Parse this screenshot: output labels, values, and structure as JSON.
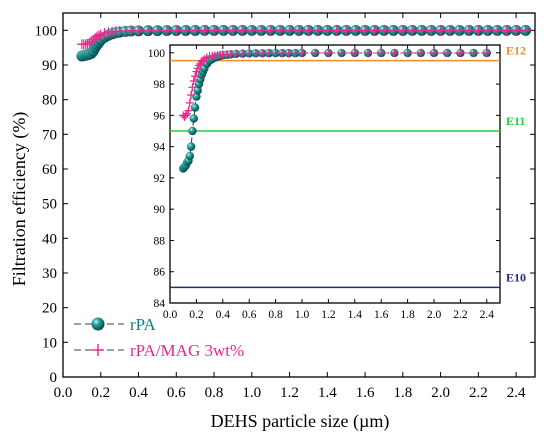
{
  "chart_data": [
    {
      "type": "scatter",
      "title": "",
      "xlabel": "DEHS particle size (µm)",
      "ylabel": "Filtration efficiency (%)",
      "xlim": [
        0.0,
        2.5
      ],
      "ylim": [
        0,
        105
      ],
      "x_ticks": [
        "0.0",
        "0.2",
        "0.4",
        "0.6",
        "0.8",
        "1.0",
        "1.2",
        "1.4",
        "1.6",
        "1.8",
        "2.0",
        "2.2",
        "2.4"
      ],
      "y_ticks": [
        "0",
        "10",
        "20",
        "30",
        "40",
        "50",
        "60",
        "70",
        "80",
        "90",
        "100"
      ],
      "legend_placement": "bottom-left",
      "series": [
        {
          "name": "rPA",
          "marker": "sphere",
          "color": "#0e7f7f",
          "x": [
            0.1,
            0.11,
            0.12,
            0.13,
            0.14,
            0.15,
            0.16,
            0.17,
            0.18,
            0.19,
            0.2,
            0.22,
            0.24,
            0.26,
            0.28,
            0.3,
            0.33,
            0.36,
            0.4,
            0.45,
            0.5,
            0.55,
            0.6,
            0.65,
            0.7,
            0.75,
            0.8,
            0.85,
            0.9,
            0.95,
            1.0,
            1.05,
            1.1,
            1.15,
            1.2,
            1.25,
            1.3,
            1.35,
            1.4,
            1.45,
            1.5,
            1.55,
            1.6,
            1.65,
            1.7,
            1.75,
            1.8,
            1.85,
            1.9,
            1.95,
            2.0,
            2.05,
            2.1,
            2.15,
            2.2,
            2.25,
            2.3,
            2.35,
            2.4,
            2.45
          ],
          "y": [
            92.6,
            92.7,
            92.8,
            93.0,
            93.1,
            93.4,
            94.0,
            95.0,
            95.8,
            96.5,
            97.2,
            98.0,
            98.6,
            99.0,
            99.3,
            99.5,
            99.7,
            99.8,
            99.85,
            99.9,
            99.93,
            99.95,
            99.96,
            99.97,
            99.97,
            99.98,
            99.98,
            99.98,
            99.98,
            99.98,
            99.99,
            99.99,
            99.99,
            99.99,
            99.99,
            99.99,
            99.99,
            99.99,
            99.99,
            99.99,
            99.99,
            99.99,
            99.99,
            99.99,
            99.99,
            99.99,
            99.99,
            99.99,
            99.99,
            99.99,
            99.99,
            99.99,
            99.99,
            99.99,
            99.99,
            99.99,
            99.99,
            99.99,
            99.99,
            99.99
          ]
        },
        {
          "name": "rPA/MAG 3wt%",
          "marker": "plus",
          "color": "#e8288a",
          "x": [
            0.1,
            0.11,
            0.12,
            0.13,
            0.14,
            0.15,
            0.16,
            0.17,
            0.18,
            0.19,
            0.2,
            0.22,
            0.24,
            0.26,
            0.28,
            0.3,
            0.33,
            0.36,
            0.4,
            0.45,
            0.5,
            0.55,
            0.6,
            0.65,
            0.7,
            0.75,
            0.8,
            0.85,
            0.9,
            0.95,
            1.0,
            1.05,
            1.1,
            1.15,
            1.2,
            1.25,
            1.3,
            1.35,
            1.4,
            1.45,
            1.5,
            1.55,
            1.6,
            1.65,
            1.7,
            1.75,
            1.8,
            1.85,
            1.9,
            1.95,
            2.0,
            2.05,
            2.1,
            2.15,
            2.2,
            2.25,
            2.3,
            2.35,
            2.4,
            2.45
          ],
          "y": [
            96.0,
            95.9,
            96.0,
            96.1,
            96.3,
            96.8,
            97.3,
            97.8,
            98.2,
            98.5,
            98.8,
            99.2,
            99.45,
            99.6,
            99.7,
            99.78,
            99.83,
            99.87,
            99.9,
            99.92,
            99.94,
            99.95,
            99.96,
            99.97,
            99.97,
            99.98,
            99.98,
            99.98,
            99.98,
            99.98,
            99.99,
            99.99,
            99.99,
            99.99,
            99.99,
            99.99,
            99.99,
            99.99,
            99.99,
            99.99,
            99.99,
            99.99,
            99.99,
            99.99,
            99.99,
            99.99,
            99.99,
            99.99,
            99.99,
            99.99,
            99.99,
            99.99,
            99.99,
            99.99,
            99.99,
            99.99,
            99.99,
            99.99,
            99.99,
            99.99
          ]
        }
      ]
    },
    {
      "type": "scatter",
      "title": "",
      "xlabel": "",
      "ylabel": "",
      "xlim": [
        0.0,
        2.5
      ],
      "ylim": [
        84,
        100.5
      ],
      "x_ticks": [
        "0.0",
        "0.2",
        "0.4",
        "0.6",
        "0.8",
        "1.0",
        "1.2",
        "1.4",
        "1.6",
        "1.8",
        "2.0",
        "2.2",
        "2.4"
      ],
      "y_ticks": [
        "84",
        "86",
        "88",
        "90",
        "92",
        "94",
        "96",
        "98",
        "100"
      ],
      "reference_lines": [
        {
          "label": "E12",
          "y": 99.5,
          "color": "#f08a2c"
        },
        {
          "label": "E11",
          "y": 95.0,
          "color": "#22d13a"
        },
        {
          "label": "E10",
          "y": 85.0,
          "color": "#1f2a8c"
        }
      ],
      "series": [
        {
          "name": "rPA",
          "marker": "sphere",
          "color": "#0e7f7f",
          "x": [
            0.1,
            0.11,
            0.12,
            0.13,
            0.14,
            0.15,
            0.16,
            0.17,
            0.18,
            0.19,
            0.2,
            0.21,
            0.22,
            0.23,
            0.24,
            0.25,
            0.26,
            0.28,
            0.3,
            0.32,
            0.34,
            0.36,
            0.38,
            0.4,
            0.43,
            0.46,
            0.5,
            0.55,
            0.6,
            0.65,
            0.7,
            0.75,
            0.8,
            0.85,
            0.9,
            0.95,
            1.0,
            1.1,
            1.2,
            1.3,
            1.4,
            1.5,
            1.6,
            1.7,
            1.8,
            1.9,
            2.0,
            2.1,
            2.2,
            2.3,
            2.4
          ],
          "y": [
            92.6,
            92.7,
            92.8,
            93.0,
            93.1,
            93.4,
            94.0,
            95.0,
            95.8,
            96.5,
            97.2,
            97.6,
            98.0,
            98.3,
            98.6,
            98.8,
            99.0,
            99.3,
            99.5,
            99.6,
            99.7,
            99.75,
            99.8,
            99.85,
            99.87,
            99.9,
            99.93,
            99.95,
            99.96,
            99.97,
            99.97,
            99.98,
            99.98,
            99.98,
            99.98,
            99.98,
            99.99,
            99.99,
            99.99,
            99.99,
            99.99,
            99.99,
            99.99,
            99.99,
            99.99,
            99.99,
            99.99,
            99.99,
            99.99,
            99.99,
            99.99
          ]
        },
        {
          "name": "rPA/MAG 3wt%",
          "marker": "plus",
          "color": "#e8288a",
          "x": [
            0.1,
            0.11,
            0.12,
            0.13,
            0.14,
            0.15,
            0.16,
            0.17,
            0.18,
            0.19,
            0.2,
            0.21,
            0.22,
            0.23,
            0.24,
            0.25,
            0.26,
            0.28,
            0.3,
            0.32,
            0.34,
            0.36,
            0.38,
            0.4,
            0.43,
            0.46,
            0.5,
            0.55,
            0.6,
            0.65,
            0.7,
            0.75,
            0.8,
            0.85,
            0.9,
            0.95,
            1.0,
            1.1,
            1.2,
            1.3,
            1.4,
            1.5,
            1.6,
            1.7,
            1.8,
            1.9,
            2.0,
            2.1,
            2.2,
            2.3,
            2.4
          ],
          "y": [
            96.0,
            95.9,
            96.0,
            96.1,
            96.3,
            96.8,
            97.3,
            97.8,
            98.2,
            98.5,
            98.8,
            99.0,
            99.2,
            99.3,
            99.45,
            99.5,
            99.6,
            99.7,
            99.78,
            99.8,
            99.83,
            99.85,
            99.87,
            99.9,
            99.91,
            99.92,
            99.94,
            99.95,
            99.96,
            99.97,
            99.97,
            99.98,
            99.98,
            99.98,
            99.98,
            99.98,
            99.99,
            99.99,
            99.99,
            99.99,
            99.99,
            99.99,
            99.99,
            99.99,
            99.99,
            99.99,
            99.99,
            99.99,
            99.99,
            99.99,
            99.99
          ]
        }
      ]
    }
  ]
}
